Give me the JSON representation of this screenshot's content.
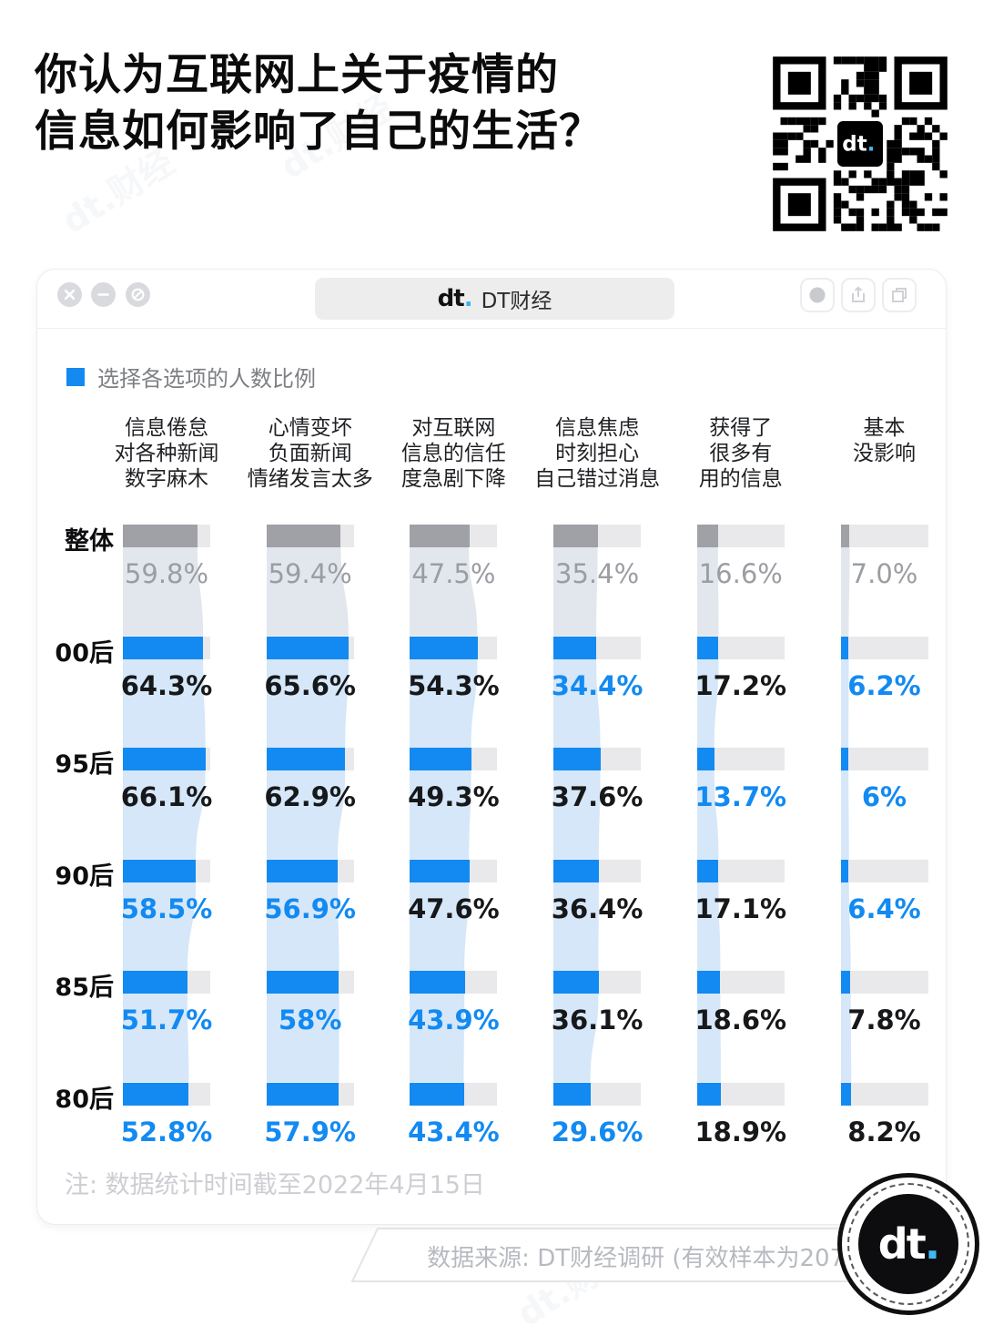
{
  "title": {
    "line1": "你认为互联网上关于疫情的",
    "line2": "信息如何影响了自己的生活？"
  },
  "watermark_text": "dt.财经",
  "window": {
    "brand_logo": "dt",
    "brand_dot": ".",
    "brand_name": "DT财经",
    "controls": [
      "close",
      "minimize",
      "block"
    ],
    "actions": [
      "circle",
      "share",
      "tabs"
    ]
  },
  "legend": {
    "label": "选择各选项的人数比例",
    "color": "#128AF2"
  },
  "chart_data": {
    "type": "bar",
    "orientation": "horizontal",
    "unit": "%",
    "axis_max": 70,
    "legend": "选择各选项的人数比例",
    "categories": [
      {
        "lines": [
          "信息倦怠",
          "对各种新闻",
          "数字麻木"
        ]
      },
      {
        "lines": [
          "心情变坏",
          "负面新闻",
          "情绪发言太多"
        ]
      },
      {
        "lines": [
          "对互联网",
          "信息的信任",
          "度急剧下降"
        ]
      },
      {
        "lines": [
          "信息焦虑",
          "时刻担心",
          "自己错过消息"
        ]
      },
      {
        "lines": [
          "获得了",
          "很多有",
          "用的信息"
        ]
      },
      {
        "lines": [
          "基本",
          "没影响"
        ]
      }
    ],
    "rows": [
      {
        "label": "整体",
        "style": "overall",
        "values": [
          59.8,
          59.4,
          47.5,
          35.4,
          16.6,
          7.0
        ],
        "display": [
          "59.8%",
          "59.4%",
          "47.5%",
          "35.4%",
          "16.6%",
          "7.0%"
        ],
        "emphasis": [
          "gray",
          "gray",
          "gray",
          "gray",
          "gray",
          "gray"
        ]
      },
      {
        "label": "00后",
        "style": "generation",
        "values": [
          64.3,
          65.6,
          54.3,
          34.4,
          17.2,
          6.2
        ],
        "display": [
          "64.3%",
          "65.6%",
          "54.3%",
          "34.4%",
          "17.2%",
          "6.2%"
        ],
        "emphasis": [
          "black",
          "black",
          "black",
          "blue",
          "black",
          "blue"
        ]
      },
      {
        "label": "95后",
        "style": "generation",
        "values": [
          66.1,
          62.9,
          49.3,
          37.6,
          13.7,
          6.0
        ],
        "display": [
          "66.1%",
          "62.9%",
          "49.3%",
          "37.6%",
          "13.7%",
          "6%"
        ],
        "emphasis": [
          "black",
          "black",
          "black",
          "black",
          "blue",
          "blue"
        ]
      },
      {
        "label": "90后",
        "style": "generation",
        "values": [
          58.5,
          56.9,
          47.6,
          36.4,
          17.1,
          6.4
        ],
        "display": [
          "58.5%",
          "56.9%",
          "47.6%",
          "36.4%",
          "17.1%",
          "6.4%"
        ],
        "emphasis": [
          "blue",
          "blue",
          "black",
          "black",
          "black",
          "blue"
        ]
      },
      {
        "label": "85后",
        "style": "generation",
        "values": [
          51.7,
          58.0,
          43.9,
          36.1,
          18.6,
          7.8
        ],
        "display": [
          "51.7%",
          "58%",
          "43.9%",
          "36.1%",
          "18.6%",
          "7.8%"
        ],
        "emphasis": [
          "blue",
          "blue",
          "blue",
          "black",
          "black",
          "black"
        ]
      },
      {
        "label": "80后",
        "style": "generation",
        "values": [
          52.8,
          57.9,
          43.4,
          29.6,
          18.9,
          8.2
        ],
        "display": [
          "52.8%",
          "57.9%",
          "43.4%",
          "29.6%",
          "18.9%",
          "8.2%"
        ],
        "emphasis": [
          "blue",
          "blue",
          "blue",
          "blue",
          "black",
          "black"
        ]
      }
    ],
    "colors": {
      "bar_fill": "#128AF2",
      "overall_fill": "#9FA1A7",
      "track": "#E9E9EB",
      "band": "#D5E7F8",
      "band_first": "#E2E7ED",
      "value_black": "#17181A",
      "value_blue": "#128AF2",
      "value_gray": "#9B9DA3"
    }
  },
  "note": "注: 数据统计时间截至2022年4月15日",
  "source": "数据来源: DT财经调研 (有效样本为2079份)"
}
